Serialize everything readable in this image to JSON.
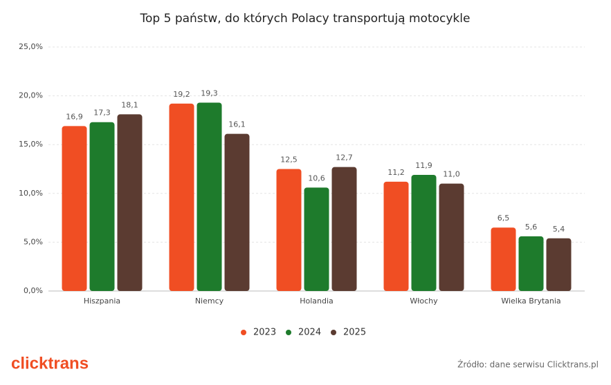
{
  "chart_data": {
    "type": "bar",
    "title": "Top 5 państw, do których Polacy transportują motocykle",
    "categories": [
      "Hiszpania",
      "Niemcy",
      "Holandia",
      "Włochy",
      "Wielka Brytania"
    ],
    "series": [
      {
        "name": "2023",
        "color": "#f04e23",
        "values": [
          16.9,
          19.2,
          12.5,
          11.2,
          6.5
        ],
        "value_labels": [
          "16,9",
          "19,2",
          "12,5",
          "11,2",
          "6,5"
        ]
      },
      {
        "name": "2024",
        "color": "#1e7b2c",
        "values": [
          17.3,
          19.3,
          10.6,
          11.9,
          5.6
        ],
        "value_labels": [
          "17,3",
          "19,3",
          "10,6",
          "11,9",
          "5,6"
        ]
      },
      {
        "name": "2025",
        "color": "#5b3b31",
        "values": [
          18.1,
          16.1,
          12.7,
          11.0,
          5.4
        ],
        "value_labels": [
          "18,1",
          "16,1",
          "12,7",
          "11,0",
          "5,4"
        ]
      }
    ],
    "ylim": [
      0,
      25
    ],
    "yticks": [
      {
        "value": 0,
        "label": "0,0%"
      },
      {
        "value": 5,
        "label": "5,0%"
      },
      {
        "value": 10,
        "label": "10,0%"
      },
      {
        "value": 15,
        "label": "15,0%"
      },
      {
        "value": 20,
        "label": "20,0%"
      },
      {
        "value": 25,
        "label": "25,0%"
      }
    ],
    "grid": true,
    "legend": "bottom",
    "logo": "clicktrans",
    "source": "Źródło: dane serwisu Clicktrans.pl"
  }
}
